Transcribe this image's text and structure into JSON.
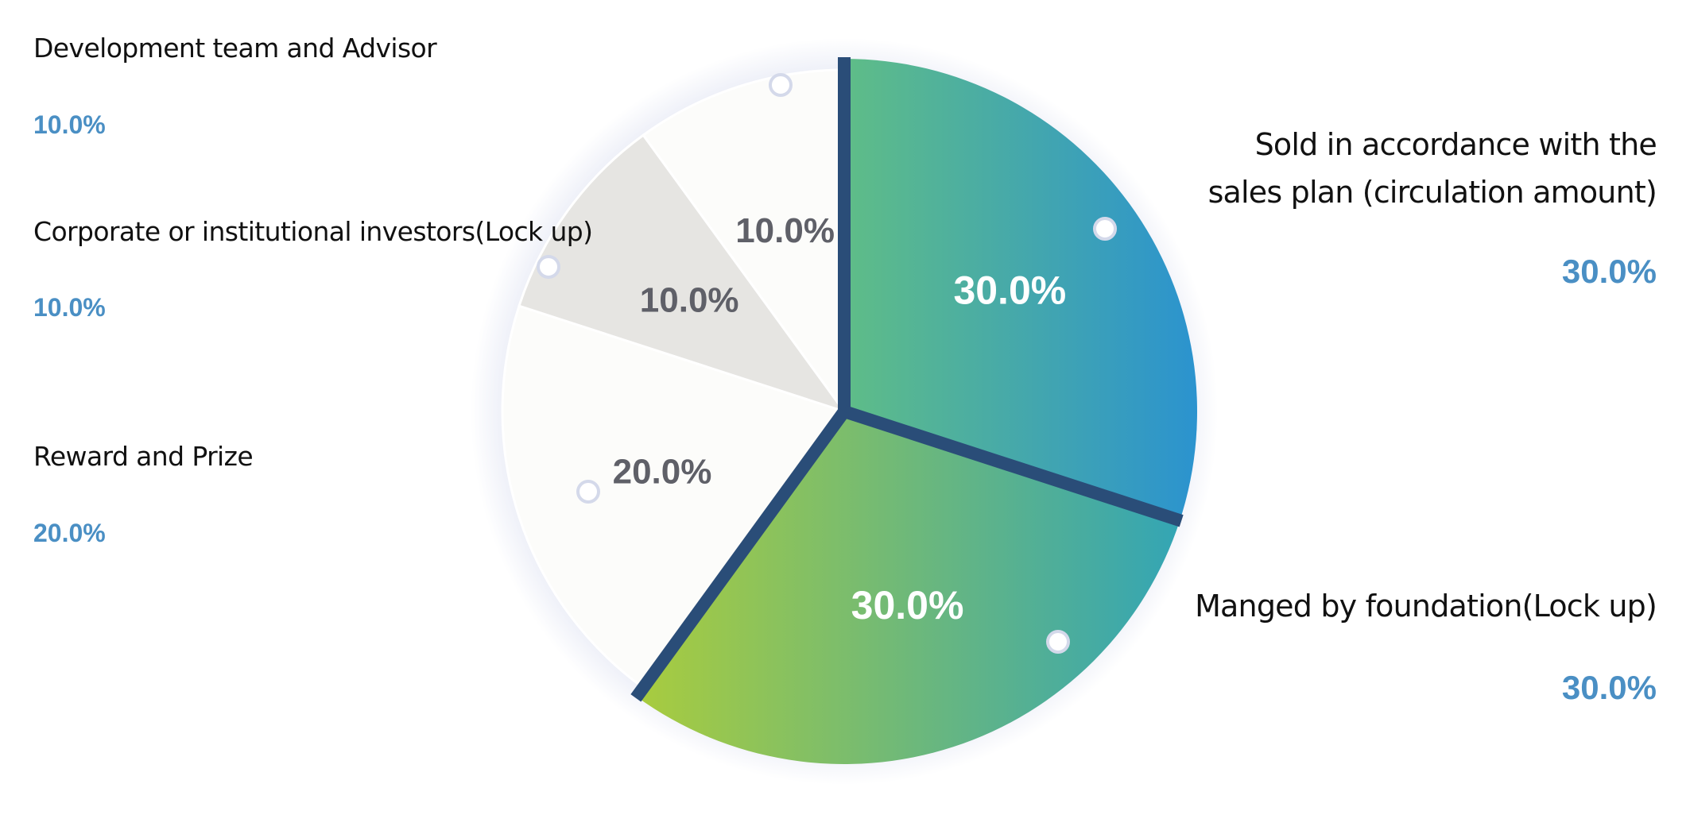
{
  "chart_data": {
    "type": "pie",
    "slices": [
      {
        "label": "Sold in accordance with the sales plan (circulation amount)",
        "value": 30.0,
        "display": "30.0%",
        "legend_value": "30.0%",
        "color": "#2b93cf",
        "gradient": [
          "#5fbd87",
          "#2b93cf"
        ]
      },
      {
        "label": "Manged by foundation(Lock up)",
        "value": 30.0,
        "display": "30.0%",
        "legend_value": "30.0%",
        "color": "#7cc05a",
        "gradient": [
          "#a9cc3e",
          "#33a5b5"
        ]
      },
      {
        "label": "Reward and Prize",
        "value": 20.0,
        "display": "20.0%",
        "legend_value": "20.0%",
        "color": "#fcfcfa"
      },
      {
        "label": "Corporate or institutional investors(Lock up)",
        "value": 10.0,
        "display": "10.0%",
        "legend_value": "10.0%",
        "color": "#e6e5e2"
      },
      {
        "label": "Development team and Advisor",
        "value": 10.0,
        "display": "10.0%",
        "legend_value": "10.0%",
        "color": "#fcfcfa"
      }
    ],
    "legend": {
      "sold": {
        "line1": "Sold in accordance with the",
        "line2": "sales plan (circulation amount)",
        "value": "30.0%"
      },
      "managed": {
        "label": "Manged by foundation(Lock up)",
        "value": "30.0%"
      },
      "reward": {
        "label": "Reward and Prize",
        "value": "20.0%"
      },
      "corporate": {
        "label": "Corporate or institutional investors(Lock up)",
        "value": "10.0%"
      },
      "development": {
        "label": "Development team and Advisor",
        "value": "10.0%"
      }
    },
    "colors": {
      "value_text": "#4a8fc4",
      "separator": "#2a4d78",
      "slice_label_dark": "#5f6068",
      "slice_label_light": "#ffffff"
    }
  }
}
